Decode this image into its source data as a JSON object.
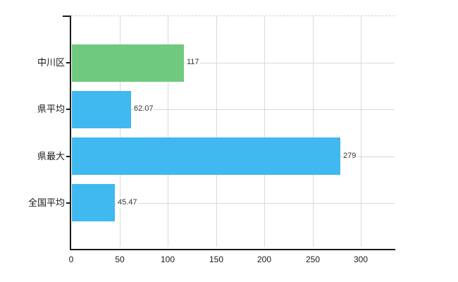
{
  "chart_data": {
    "type": "bar",
    "orientation": "horizontal",
    "title": "",
    "categories": [
      "中川区",
      "県平均",
      "県最大",
      "全国平均"
    ],
    "values": [
      117,
      62.07,
      279,
      45.47
    ],
    "value_labels": [
      "117",
      "62.07",
      "279",
      "45.47"
    ],
    "bar_colors": [
      "#6FC97E",
      "#40B8F0",
      "#40B8F0",
      "#40B8F0"
    ],
    "x_axis": {
      "tick_labels": [
        "0",
        "50",
        "100",
        "150",
        "200",
        "250",
        "300"
      ],
      "ticks": [
        0,
        50,
        100,
        150,
        200,
        250,
        300
      ],
      "range": [
        0,
        335
      ]
    },
    "grid": true,
    "legend_position": "none",
    "colors": {
      "highlight": "#6FC97E",
      "default": "#40B8F0",
      "gridline": "#D9D9D9",
      "axis": "#1A1A1A",
      "text": "#333333"
    }
  }
}
